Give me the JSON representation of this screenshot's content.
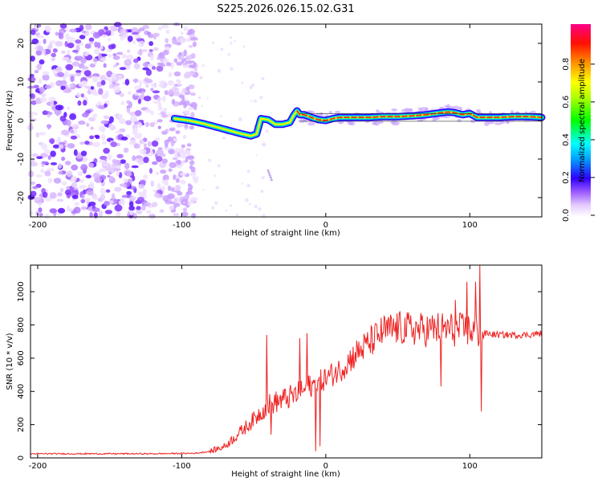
{
  "figure_title": "S225.2026.026.15.02.G31",
  "chart_data": [
    {
      "type": "heatmap",
      "name": "spectrogram",
      "title": "S225.2026.026.15.02.G31",
      "xlabel": "Height of straight line (km)",
      "ylabel": "Frequency (Hz)",
      "xlim": [
        -205,
        150
      ],
      "ylim": [
        -25,
        25
      ],
      "xticks": [
        -200,
        -100,
        0,
        100
      ],
      "yticks": [
        20,
        10,
        0,
        -10,
        -20
      ],
      "colorbar": {
        "label": "Normalized spectral amplitude",
        "range": [
          0,
          1
        ],
        "ticks": [
          "0.0",
          "0.2",
          "0.4",
          "0.6",
          "0.8"
        ],
        "colors": [
          "#ffffff",
          "#e6ccff",
          "#9b59ff",
          "#4b00ff",
          "#0000ff",
          "#00ffff",
          "#00ff00",
          "#ffff00",
          "#ff8000",
          "#ff0000",
          "#ff00a0"
        ]
      },
      "ridge": {
        "x": [
          -105,
          -95,
          -85,
          -75,
          -65,
          -58,
          -52,
          -48,
          -45,
          -40,
          -35,
          -30,
          -25,
          -22,
          -20,
          -18,
          -15,
          -10,
          -5,
          0,
          5,
          10,
          20,
          30,
          40,
          50,
          60,
          70,
          80,
          85,
          90,
          95,
          100,
          105,
          110,
          120,
          130,
          140,
          150
        ],
        "y": [
          0.5,
          0,
          -0.8,
          -1.8,
          -2.8,
          -3.5,
          -4.0,
          -3.5,
          0.5,
          0.2,
          -1,
          -1,
          -0.5,
          1.5,
          2.5,
          1.5,
          1.5,
          0.8,
          0.2,
          0.0,
          0.5,
          0.8,
          0.8,
          0.8,
          1.0,
          1.0,
          1.2,
          1.5,
          2.0,
          2.2,
          2.0,
          1.5,
          1.8,
          0.8,
          0.8,
          0.8,
          1.0,
          1.0,
          0.8
        ]
      },
      "noise_region": [
        -205,
        -95
      ]
    },
    {
      "type": "line",
      "name": "snr",
      "xlabel": "Height of straight line (km)",
      "ylabel": "SNR (10 * v/v)",
      "xlim": [
        -205,
        150
      ],
      "ylim": [
        0,
        1160
      ],
      "xticks": [
        -200,
        -100,
        0,
        100
      ],
      "yticks": [
        0,
        200,
        400,
        600,
        800,
        1000
      ],
      "color": "#ee2222",
      "trend": {
        "x": [
          -205,
          -120,
          -90,
          -80,
          -70,
          -60,
          -50,
          -40,
          -30,
          -20,
          -10,
          0,
          10,
          20,
          30,
          40,
          50,
          60,
          70,
          80,
          90,
          100,
          105,
          110,
          120,
          130,
          140,
          150
        ],
        "y": [
          25,
          25,
          28,
          40,
          70,
          150,
          230,
          320,
          350,
          380,
          430,
          480,
          530,
          620,
          690,
          760,
          780,
          775,
          770,
          780,
          770,
          770,
          760,
          750,
          740,
          740,
          740,
          750
        ]
      },
      "spikes": [
        {
          "x": -41,
          "y": 740
        },
        {
          "x": -38,
          "y": 140
        },
        {
          "x": -13,
          "y": 750
        },
        {
          "x": -18,
          "y": 720
        },
        {
          "x": -7,
          "y": 40
        },
        {
          "x": -4,
          "y": 70
        },
        {
          "x": 98,
          "y": 1060
        },
        {
          "x": 104,
          "y": 1060
        },
        {
          "x": 107,
          "y": 1160
        },
        {
          "x": 108,
          "y": 280
        },
        {
          "x": 80,
          "y": 430
        },
        {
          "x": 90,
          "y": 950
        }
      ]
    }
  ]
}
